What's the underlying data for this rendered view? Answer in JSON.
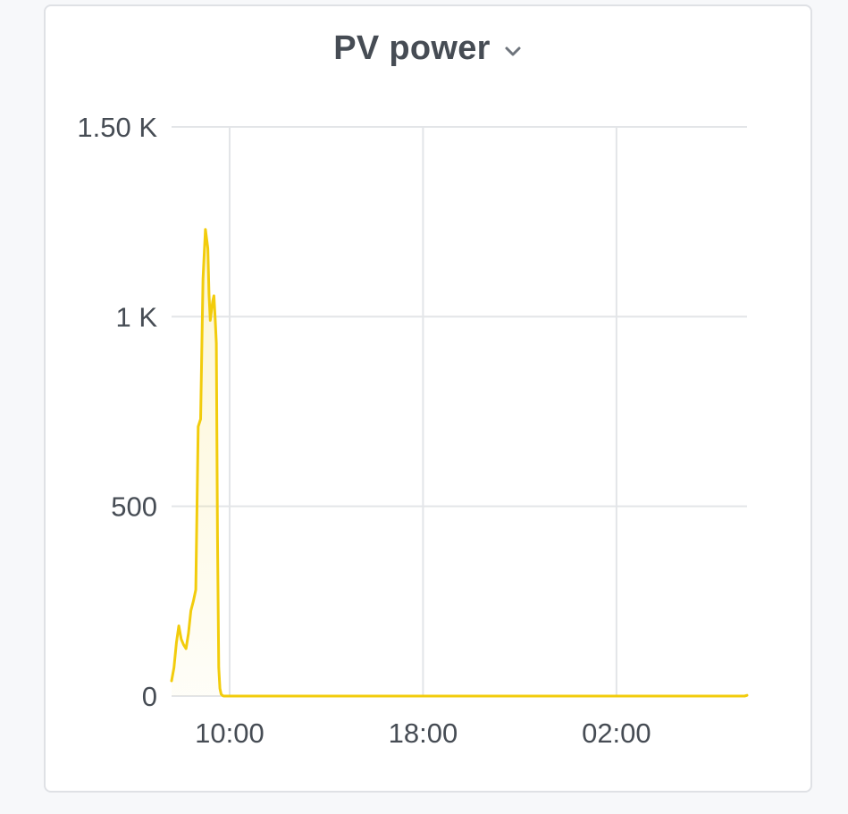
{
  "panel": {
    "title": "PV power",
    "dropdown_icon": "chevron-down-icon"
  },
  "chart_data": {
    "type": "area",
    "title": "PV power",
    "xlabel": "",
    "ylabel": "",
    "ylim": [
      0,
      1500
    ],
    "y_ticks": [
      {
        "value": 0,
        "label": "0"
      },
      {
        "value": 500,
        "label": "500"
      },
      {
        "value": 1000,
        "label": "1 K"
      },
      {
        "value": 1500,
        "label": "1.50 K"
      }
    ],
    "x_ticks": [
      {
        "value": 10,
        "label": "10:00"
      },
      {
        "value": 18,
        "label": "18:00"
      },
      {
        "value": 26,
        "label": "02:00"
      }
    ],
    "xlim": [
      7.6,
      31.4
    ],
    "grid": true,
    "legend": "none",
    "color": "#f2cc0c",
    "series": [
      {
        "x": [
          7.6,
          7.7,
          7.8,
          7.9,
          8.0,
          8.1,
          8.2,
          8.3,
          8.4,
          8.5,
          8.6,
          8.7,
          8.8,
          8.9,
          9.0,
          9.1,
          9.15,
          9.2,
          9.3,
          9.35,
          9.4,
          9.45,
          9.5,
          9.55,
          9.6,
          9.65,
          9.7,
          9.75,
          9.8,
          9.85,
          9.9,
          9.95,
          10.0,
          10.05,
          10.1,
          10.15,
          12.0,
          16.0,
          20.0,
          24.0,
          28.0,
          31.3,
          31.4
        ],
        "values": [
          40,
          75,
          140,
          185,
          150,
          135,
          125,
          165,
          225,
          250,
          280,
          710,
          730,
          1100,
          1230,
          1180,
          1060,
          990,
          1040,
          1055,
          1000,
          930,
          420,
          75,
          20,
          5,
          2,
          0,
          0,
          0,
          0,
          0,
          0,
          0,
          0,
          0,
          0,
          0,
          0,
          0,
          0,
          0,
          2
        ]
      }
    ]
  }
}
